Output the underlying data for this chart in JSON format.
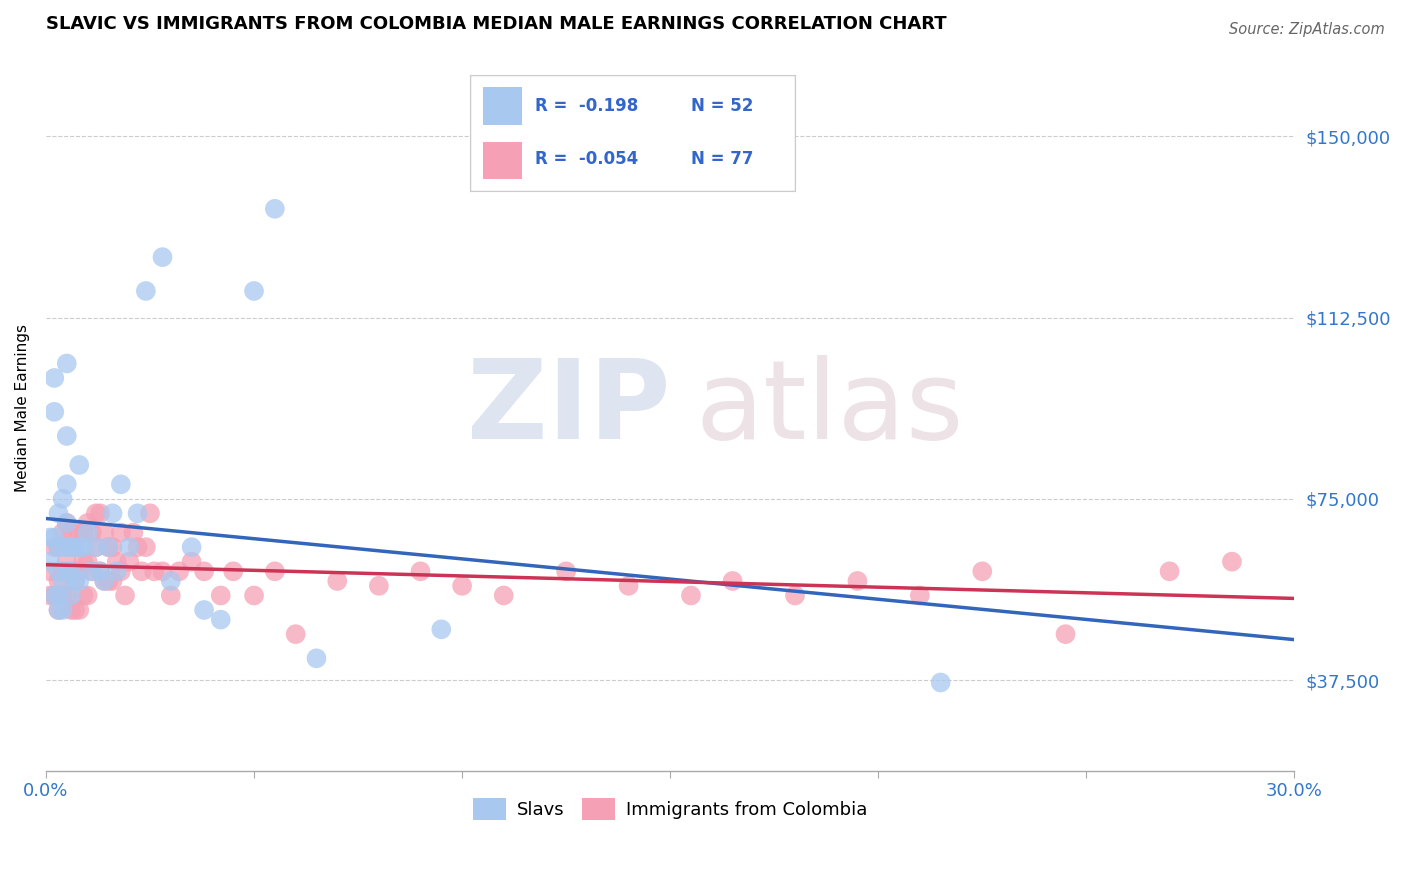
{
  "title": "SLAVIC VS IMMIGRANTS FROM COLOMBIA MEDIAN MALE EARNINGS CORRELATION CHART",
  "source": "Source: ZipAtlas.com",
  "ylabel": "Median Male Earnings",
  "xlim": [
    0.0,
    0.3
  ],
  "ylim": [
    18750,
    168750
  ],
  "yticks": [
    37500,
    75000,
    112500,
    150000
  ],
  "ytick_labels": [
    "$37,500",
    "$75,000",
    "$112,500",
    "$150,000"
  ],
  "xticks": [
    0.0,
    0.05,
    0.1,
    0.15,
    0.2,
    0.25,
    0.3
  ],
  "series1_color": "#a8c8f0",
  "series2_color": "#f5a0b5",
  "trendline1_color": "#3366bb",
  "trendline2_color": "#cc3355",
  "legend_r1": "R =  -0.198",
  "legend_n1": "N = 52",
  "legend_r2": "R =  -0.054",
  "legend_n2": "N = 77",
  "label1": "Slavs",
  "label2": "Immigrants from Colombia",
  "slavs_x": [
    0.001,
    0.001,
    0.002,
    0.002,
    0.002,
    0.002,
    0.003,
    0.003,
    0.003,
    0.003,
    0.003,
    0.004,
    0.004,
    0.004,
    0.004,
    0.005,
    0.005,
    0.005,
    0.005,
    0.005,
    0.005,
    0.006,
    0.006,
    0.006,
    0.007,
    0.007,
    0.008,
    0.008,
    0.008,
    0.009,
    0.01,
    0.011,
    0.012,
    0.013,
    0.014,
    0.015,
    0.016,
    0.017,
    0.018,
    0.02,
    0.022,
    0.024,
    0.028,
    0.03,
    0.035,
    0.038,
    0.042,
    0.05,
    0.055,
    0.065,
    0.095,
    0.215
  ],
  "slavs_y": [
    67000,
    62000,
    100000,
    93000,
    67000,
    55000,
    72000,
    65000,
    60000,
    55000,
    52000,
    75000,
    65000,
    58000,
    52000,
    103000,
    88000,
    78000,
    70000,
    65000,
    60000,
    65000,
    60000,
    55000,
    65000,
    58000,
    82000,
    65000,
    58000,
    65000,
    68000,
    60000,
    65000,
    60000,
    58000,
    65000,
    72000,
    60000,
    78000,
    65000,
    72000,
    118000,
    125000,
    58000,
    65000,
    52000,
    50000,
    118000,
    135000,
    42000,
    48000,
    37000
  ],
  "colombia_x": [
    0.001,
    0.001,
    0.002,
    0.002,
    0.003,
    0.003,
    0.003,
    0.004,
    0.004,
    0.004,
    0.005,
    0.005,
    0.005,
    0.006,
    0.006,
    0.006,
    0.007,
    0.007,
    0.007,
    0.008,
    0.008,
    0.008,
    0.009,
    0.009,
    0.009,
    0.01,
    0.01,
    0.01,
    0.011,
    0.011,
    0.012,
    0.012,
    0.013,
    0.013,
    0.014,
    0.014,
    0.015,
    0.015,
    0.016,
    0.016,
    0.017,
    0.018,
    0.018,
    0.019,
    0.02,
    0.021,
    0.022,
    0.023,
    0.024,
    0.025,
    0.026,
    0.028,
    0.03,
    0.032,
    0.035,
    0.038,
    0.042,
    0.045,
    0.05,
    0.055,
    0.06,
    0.07,
    0.08,
    0.09,
    0.1,
    0.11,
    0.125,
    0.14,
    0.155,
    0.165,
    0.18,
    0.195,
    0.21,
    0.225,
    0.245,
    0.27,
    0.285
  ],
  "colombia_y": [
    60000,
    55000,
    65000,
    55000,
    65000,
    58000,
    52000,
    68000,
    60000,
    55000,
    70000,
    62000,
    55000,
    68000,
    60000,
    52000,
    65000,
    58000,
    52000,
    68000,
    60000,
    52000,
    68000,
    62000,
    55000,
    70000,
    62000,
    55000,
    68000,
    60000,
    72000,
    65000,
    72000,
    60000,
    68000,
    58000,
    65000,
    58000,
    65000,
    58000,
    62000,
    68000,
    60000,
    55000,
    62000,
    68000,
    65000,
    60000,
    65000,
    72000,
    60000,
    60000,
    55000,
    60000,
    62000,
    60000,
    55000,
    60000,
    55000,
    60000,
    47000,
    58000,
    57000,
    60000,
    57000,
    55000,
    60000,
    57000,
    55000,
    58000,
    55000,
    58000,
    55000,
    60000,
    47000,
    60000,
    62000
  ]
}
